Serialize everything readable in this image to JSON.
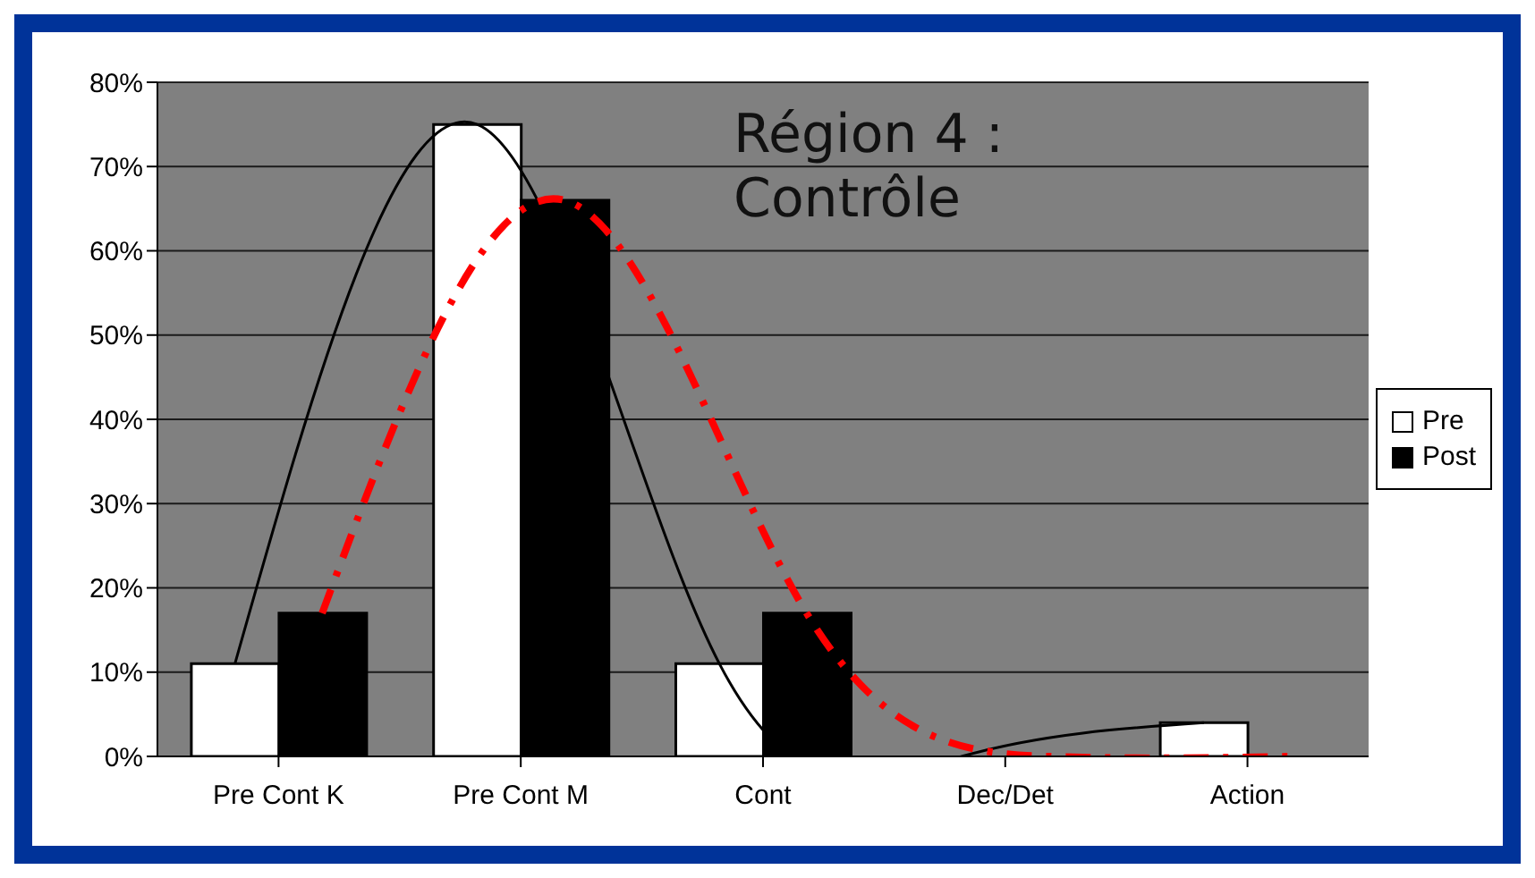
{
  "chart_data": {
    "type": "bar",
    "title": "Région 4 : Contrôle",
    "categories": [
      "Pre Cont K",
      "Pre Cont M",
      "Cont",
      "Dec/Det",
      "Action"
    ],
    "series": [
      {
        "name": "Pre",
        "color": "#ffffff",
        "values": [
          11,
          75,
          11,
          0,
          4
        ]
      },
      {
        "name": "Post",
        "color": "#000000",
        "values": [
          17,
          66,
          17,
          0,
          0
        ]
      },
      {
        "type": "line",
        "color": "#000000",
        "line_style": "solid",
        "values": [
          11,
          75,
          11,
          0,
          4
        ]
      },
      {
        "type": "line",
        "color": "#ff0000",
        "line_style": "dashed",
        "values": [
          17,
          66,
          17,
          0,
          0
        ]
      }
    ],
    "ylim": [
      0,
      80
    ],
    "yticks": [
      {
        "value": 0,
        "label": "0%"
      },
      {
        "value": 10,
        "label": "10%"
      },
      {
        "value": 20,
        "label": "20%"
      },
      {
        "value": 30,
        "label": "30%"
      },
      {
        "value": 40,
        "label": "40%"
      },
      {
        "value": 50,
        "label": "50%"
      },
      {
        "value": 60,
        "label": "60%"
      },
      {
        "value": 70,
        "label": "70%"
      },
      {
        "value": 80,
        "label": "80%"
      }
    ],
    "grid": "y",
    "legend": "right"
  }
}
